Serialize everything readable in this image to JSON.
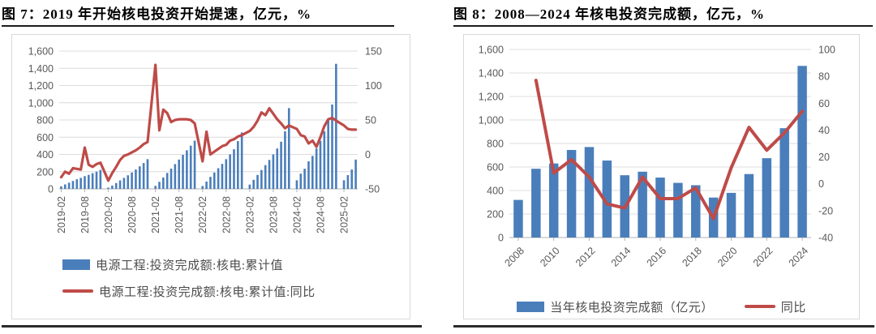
{
  "figures": [
    {
      "title": "图 7：2019 年开始核电投资开始提速，亿元，%",
      "legend": [
        {
          "label": "电源工程:投资完成额:核电:累计值",
          "type": "bar"
        },
        {
          "label": "电源工程:投资完成额:核电:累计值:同比",
          "type": "line"
        }
      ]
    },
    {
      "title": "图 8：2008—2024 年核电投资完成额，亿元，%",
      "legend": [
        {
          "label": "当年核电投资完成额（亿元）",
          "type": "bar"
        },
        {
          "label": "同比",
          "type": "line"
        }
      ]
    }
  ],
  "chart_data": [
    {
      "type": "bar",
      "title": "图 7：2019 年开始核电投资开始提速，亿元，%",
      "x": [
        "2019-02",
        "2019-03",
        "2019-04",
        "2019-05",
        "2019-06",
        "2019-07",
        "2019-08",
        "2019-09",
        "2019-10",
        "2019-11",
        "2019-12",
        "2020-01",
        "2020-02",
        "2020-03",
        "2020-04",
        "2020-05",
        "2020-06",
        "2020-07",
        "2020-08",
        "2020-09",
        "2020-10",
        "2020-11",
        "2020-12",
        "2021-01",
        "2021-02",
        "2021-03",
        "2021-04",
        "2021-05",
        "2021-06",
        "2021-07",
        "2021-08",
        "2021-09",
        "2021-10",
        "2021-11",
        "2021-12",
        "2022-01",
        "2022-02",
        "2022-03",
        "2022-04",
        "2022-05",
        "2022-06",
        "2022-07",
        "2022-08",
        "2022-09",
        "2022-10",
        "2022-11",
        "2022-12",
        "2023-01",
        "2023-02",
        "2023-03",
        "2023-04",
        "2023-05",
        "2023-06",
        "2023-07",
        "2023-08",
        "2023-09",
        "2023-10",
        "2023-11",
        "2023-12",
        "2024-01",
        "2024-02",
        "2024-03",
        "2024-04",
        "2024-05",
        "2024-06",
        "2024-07",
        "2024-08",
        "2024-09",
        "2024-10",
        "2024-11",
        "2024-12",
        "2025-01",
        "2025-02",
        "2025-03",
        "2025-04",
        "2025-05"
      ],
      "series": [
        {
          "name": "电源工程:投资完成额:核电:累计值",
          "type": "bar",
          "axis": "left",
          "values": [
            30,
            52,
            72,
            92,
            112,
            128,
            148,
            163,
            182,
            200,
            220,
            null,
            15,
            38,
            68,
            98,
            128,
            158,
            190,
            225,
            262,
            300,
            345,
            null,
            35,
            82,
            132,
            185,
            235,
            288,
            340,
            395,
            448,
            502,
            560,
            null,
            33,
            85,
            140,
            190,
            240,
            290,
            345,
            400,
            460,
            555,
            655,
            null,
            50,
            105,
            162,
            219,
            276,
            336,
            400,
            469,
            548,
            669,
            938,
            null,
            100,
            177,
            234,
            320,
            383,
            469,
            558,
            669,
            802,
            979,
            1452,
            null,
            100,
            160,
            225,
            340
          ]
        },
        {
          "name": "电源工程:投资完成额:核电:累计值:同比",
          "type": "line",
          "axis": "right",
          "values": [
            -33,
            -25,
            -28,
            -20,
            -21,
            -22,
            10,
            -15,
            -18,
            -14,
            -12,
            null,
            -38,
            -27,
            -18,
            -8,
            -2,
            0,
            3,
            6,
            10,
            15,
            18,
            null,
            130,
            35,
            65,
            60,
            47,
            50,
            51,
            51,
            51,
            50,
            45,
            null,
            -10,
            33,
            0,
            4,
            8,
            12,
            14,
            20,
            22,
            26,
            28,
            null,
            34,
            40,
            49,
            61,
            57,
            67,
            59,
            51,
            45,
            38,
            42,
            null,
            37,
            28,
            26,
            16,
            20,
            11,
            25,
            41,
            51,
            53,
            49,
            null,
            42,
            37,
            36,
            36
          ]
        }
      ],
      "left_axis": {
        "min": 0,
        "max": 1600,
        "step": 200,
        "tick_labels": [
          "0",
          "200",
          "400",
          "600",
          "800",
          "1,000",
          "1,200",
          "1,400",
          "1,600"
        ]
      },
      "right_axis": {
        "min": -50,
        "max": 150,
        "step": 50,
        "tick_labels": [
          "-50",
          "0",
          "50",
          "100",
          "150"
        ]
      },
      "x_tick_labels": [
        "2019-02",
        "2019-08",
        "2020-02",
        "2020-08",
        "2021-02",
        "2021-08",
        "2022-02",
        "2022-08",
        "2023-02",
        "2023-08",
        "2024-02",
        "2024-08",
        "2025-02"
      ],
      "grid": true,
      "legend_position": "bottom-left",
      "colors": {
        "bar": "#4A7EBB",
        "line": "#BE4B48"
      }
    },
    {
      "type": "bar",
      "title": "图 8：2008—2024 年核电投资完成额，亿元，%",
      "x": [
        "2008",
        "2009",
        "2010",
        "2011",
        "2012",
        "2013",
        "2014",
        "2015",
        "2016",
        "2017",
        "2018",
        "2019",
        "2020",
        "2021",
        "2022",
        "2023",
        "2024"
      ],
      "series": [
        {
          "name": "当年核电投资完成额（亿元）",
          "type": "bar",
          "axis": "left",
          "values": [
            320,
            585,
            630,
            745,
            770,
            655,
            530,
            560,
            510,
            465,
            445,
            340,
            380,
            540,
            675,
            930,
            1460
          ]
        },
        {
          "name": "同比",
          "type": "line",
          "axis": "right",
          "values": [
            null,
            77,
            8,
            18,
            5,
            -15,
            -18,
            5,
            -11,
            -11,
            -3,
            -26,
            12,
            42,
            25,
            38,
            54
          ]
        }
      ],
      "left_axis": {
        "min": 0,
        "max": 1600,
        "step": 200,
        "tick_labels": [
          "0",
          "200",
          "400",
          "600",
          "800",
          "1,000",
          "1,200",
          "1,400",
          "1,600"
        ]
      },
      "right_axis": {
        "min": -40,
        "max": 100,
        "step": 20,
        "tick_labels": [
          "-40",
          "-20",
          "0",
          "20",
          "40",
          "60",
          "80",
          "100"
        ]
      },
      "x_tick_labels": [
        "2008",
        "2010",
        "2012",
        "2014",
        "2016",
        "2018",
        "2020",
        "2022",
        "2024"
      ],
      "grid": true,
      "legend_position": "bottom-center",
      "colors": {
        "bar": "#4A7EBB",
        "line": "#BE4B48"
      }
    }
  ]
}
